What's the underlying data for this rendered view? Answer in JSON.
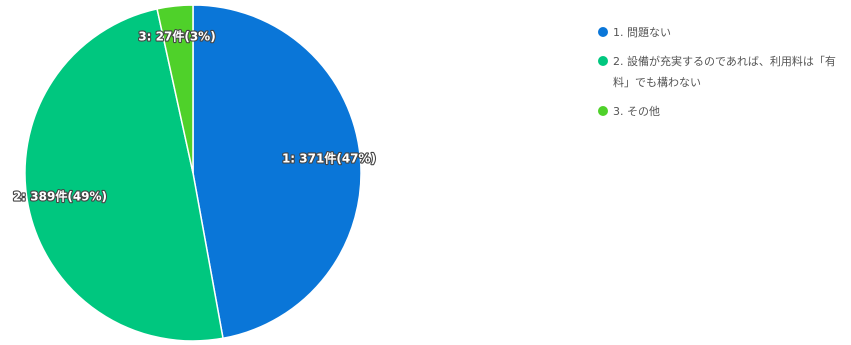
{
  "chart_data": {
    "type": "pie",
    "categories": [
      "1. 問題ない",
      "2. 設備が充実するのであれば、利用料は「有料」でも構わない",
      "3. その他"
    ],
    "values": [
      371,
      389,
      27
    ],
    "percents": [
      47,
      49,
      3
    ],
    "unit": "件",
    "colors": [
      "#0a76d8",
      "#00c77f",
      "#4fd12a"
    ],
    "data_labels": [
      "1: 371件(47%)",
      "2: 389件(49%)",
      "3: 27件(3%)"
    ],
    "legend_position": "right",
    "start": "top",
    "direction": "clockwise"
  }
}
